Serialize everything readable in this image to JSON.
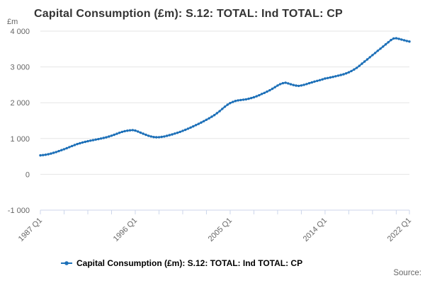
{
  "header": {
    "title": "Capital Consumption (£m): S.12: TOTAL: Ind TOTAL: CP"
  },
  "chart_data": {
    "type": "line",
    "title": "Capital Consumption (£m): S.12: TOTAL: Ind TOTAL: CP",
    "y_unit_label": "£m",
    "ylabel": "£m",
    "xlabel": "",
    "ylim": [
      -1000,
      4000
    ],
    "grid": true,
    "legend_position": "bottom",
    "y_ticks": [
      {
        "value": 4000,
        "label": "4 000"
      },
      {
        "value": 3000,
        "label": "3 000"
      },
      {
        "value": 2000,
        "label": "2 000"
      },
      {
        "value": 1000,
        "label": "1 000"
      },
      {
        "value": 0,
        "label": "0"
      },
      {
        "value": -1000,
        "label": "-1 000"
      }
    ],
    "x_frequency": "quarterly",
    "x_start": "1987 Q1",
    "x_end": "2022 Q1",
    "x_minor_tick_interval_quarters": 9,
    "x_labeled_ticks": [
      {
        "index": 0,
        "label": "1987 Q1"
      },
      {
        "index": 36,
        "label": "1996 Q1"
      },
      {
        "index": 72,
        "label": "2005 Q1"
      },
      {
        "index": 108,
        "label": "2014 Q1"
      },
      {
        "index": 140,
        "label": "2022 Q1"
      }
    ],
    "series": [
      {
        "name": "Capital Consumption (£m): S.12: TOTAL: Ind TOTAL: CP",
        "values": [
          530,
          538,
          548,
          562,
          580,
          600,
          622,
          648,
          675,
          702,
          730,
          760,
          790,
          818,
          845,
          868,
          890,
          908,
          925,
          940,
          955,
          970,
          985,
          1000,
          1015,
          1033,
          1055,
          1080,
          1105,
          1133,
          1160,
          1185,
          1205,
          1220,
          1230,
          1235,
          1222,
          1195,
          1165,
          1135,
          1105,
          1078,
          1058,
          1042,
          1035,
          1038,
          1045,
          1058,
          1075,
          1095,
          1115,
          1138,
          1160,
          1185,
          1215,
          1243,
          1275,
          1307,
          1340,
          1375,
          1410,
          1447,
          1485,
          1523,
          1565,
          1608,
          1655,
          1708,
          1765,
          1828,
          1890,
          1945,
          1990,
          2022,
          2050,
          2065,
          2075,
          2085,
          2095,
          2110,
          2130,
          2153,
          2180,
          2210,
          2245,
          2275,
          2310,
          2348,
          2390,
          2435,
          2480,
          2520,
          2545,
          2560,
          2540,
          2515,
          2495,
          2478,
          2470,
          2482,
          2500,
          2522,
          2545,
          2568,
          2590,
          2610,
          2630,
          2652,
          2675,
          2690,
          2705,
          2722,
          2740,
          2757,
          2775,
          2795,
          2820,
          2850,
          2885,
          2928,
          2975,
          3030,
          3090,
          3150,
          3210,
          3270,
          3330,
          3390,
          3450,
          3510,
          3570,
          3630,
          3690,
          3750,
          3795,
          3800,
          3785,
          3765,
          3745,
          3725,
          3710
        ]
      }
    ],
    "colors": {
      "line": "#1d70b8",
      "grid": "#e6e6e6",
      "axis": "#ccd6eb",
      "tick_text": "#666666",
      "title_text": "#333333"
    }
  },
  "legend": {
    "label": "Capital Consumption (£m): S.12: TOTAL: Ind TOTAL: CP"
  },
  "footer": {
    "source_label": "Source:"
  }
}
